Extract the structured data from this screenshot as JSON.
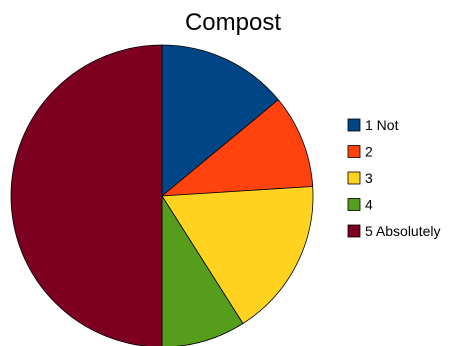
{
  "chart_data": {
    "type": "pie",
    "title": "Compost",
    "categories": [
      "1 Not",
      "2",
      "3",
      "4",
      "5 Absolutely"
    ],
    "values": [
      14,
      10,
      17,
      9,
      50
    ],
    "colors": [
      "#004586",
      "#ff420e",
      "#ffd320",
      "#579d1c",
      "#7e0021"
    ],
    "start_angle_deg": 0,
    "direction": "clockwise",
    "legend_position": "right"
  }
}
